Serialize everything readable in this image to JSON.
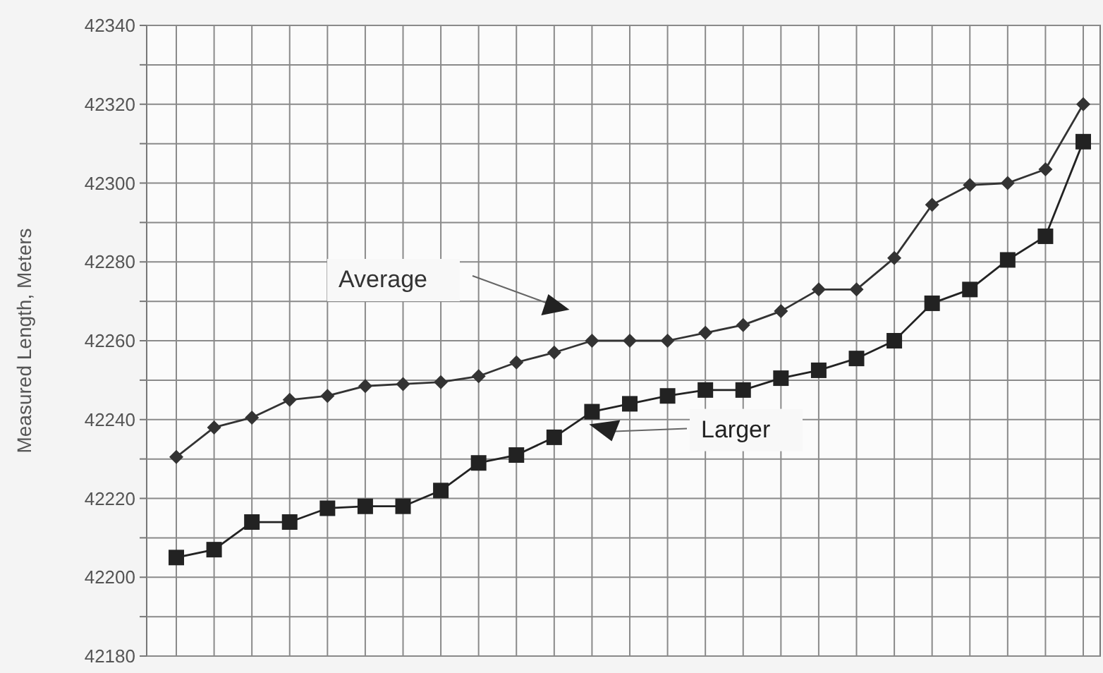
{
  "chart_data": {
    "type": "line",
    "ylabel": "Measured Length, Meters",
    "categories": [
      null,
      null,
      null,
      null,
      null,
      null,
      null,
      null,
      null,
      null,
      null,
      null,
      null,
      null,
      null,
      null,
      null,
      null,
      null,
      null,
      null,
      null,
      null,
      null,
      null
    ],
    "series": [
      {
        "name": "Average",
        "color": "#333333",
        "marker": "diamond",
        "values": [
          42230.5,
          42238,
          42240.5,
          42245,
          42246,
          42248.5,
          42249,
          42249.5,
          42251,
          42254.5,
          42257,
          42260,
          42260,
          42260,
          42262,
          42264,
          42267.5,
          42273,
          42273,
          42281,
          42294.5,
          42299.5,
          42300,
          42303.5,
          42320
        ]
      },
      {
        "name": "Larger",
        "color": "#222222",
        "marker": "square",
        "values": [
          42205,
          42207,
          42214,
          42214,
          42217.5,
          42218,
          42218,
          42222,
          42229,
          42231,
          42235.5,
          42242,
          42244,
          42246,
          42247.5,
          42247.5,
          42250.5,
          42252.5,
          42255.5,
          42260,
          42269.5,
          42273,
          42280.5,
          42286.5,
          42310.5
        ]
      }
    ],
    "ylim": [
      42180,
      42340
    ],
    "yticks": [
      42180,
      {
        "value": 42190,
        "label": null
      },
      42200,
      {
        "value": 42210,
        "label": null
      },
      42220,
      {
        "value": 42230,
        "label": null
      },
      42240,
      {
        "value": 42250,
        "label": null
      },
      42260,
      {
        "value": 42270,
        "label": null
      },
      42280,
      {
        "value": 42290,
        "label": null
      },
      42300,
      {
        "value": 42310,
        "label": null
      },
      42320,
      {
        "value": 42330,
        "label": null
      },
      42340
    ],
    "grid": true,
    "legend": false,
    "line_style": "solid"
  }
}
